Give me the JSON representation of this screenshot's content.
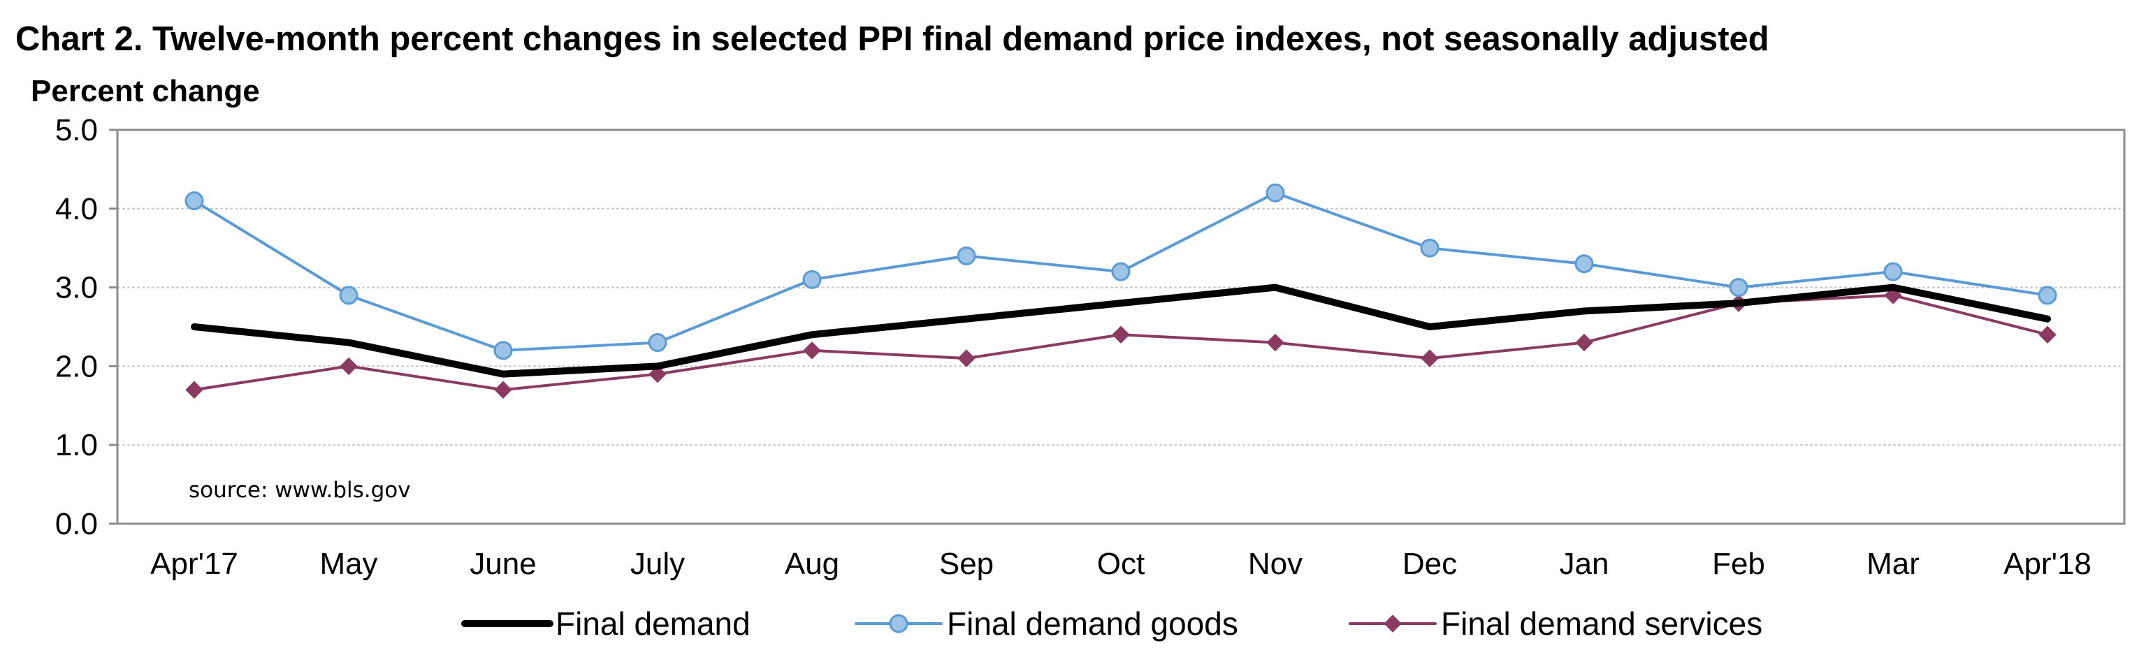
{
  "chart_data": {
    "type": "line",
    "title": "Chart 2. Twelve-month percent changes in selected PPI final demand price indexes, not seasonally adjusted",
    "ylabel": "Percent change",
    "xlabel": "",
    "categories": [
      "Apr'17",
      "May",
      "June",
      "July",
      "Aug",
      "Sep",
      "Oct",
      "Nov",
      "Dec",
      "Jan",
      "Feb",
      "Mar",
      "Apr'18"
    ],
    "y_ticks": [
      "0.0",
      "1.0",
      "2.0",
      "3.0",
      "4.0",
      "5.0"
    ],
    "ylim": [
      0,
      5
    ],
    "grid": "horizontal",
    "legend_position": "bottom",
    "annotation": "source: www.bls.gov",
    "series": [
      {
        "name": "Final demand",
        "color": "#000000",
        "marker": "none",
        "values": [
          2.5,
          2.3,
          1.9,
          2.0,
          2.4,
          2.6,
          2.8,
          3.0,
          2.5,
          2.7,
          2.8,
          3.0,
          2.6
        ]
      },
      {
        "name": "Final demand goods",
        "color": "#5B9BD5",
        "marker_fill": "#9DC3E6",
        "marker": "circle",
        "values": [
          4.1,
          2.9,
          2.2,
          2.3,
          3.1,
          3.4,
          3.2,
          4.2,
          3.5,
          3.3,
          3.0,
          3.2,
          2.9
        ]
      },
      {
        "name": "Final demand services",
        "color": "#8B3A62",
        "marker": "diamond",
        "values": [
          1.7,
          2.0,
          1.7,
          1.9,
          2.2,
          2.1,
          2.4,
          2.3,
          2.1,
          2.3,
          2.8,
          2.9,
          2.4
        ]
      }
    ]
  }
}
